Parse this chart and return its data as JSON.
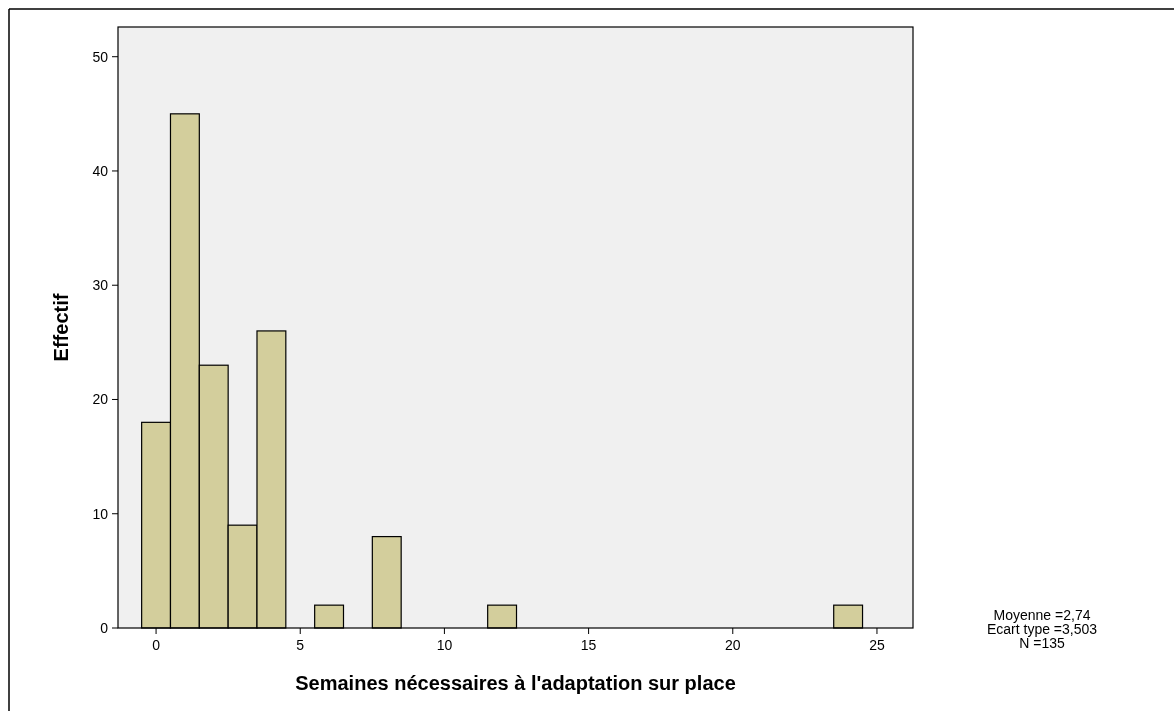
{
  "chart_data": {
    "type": "histogram",
    "xlabel": "Semaines nécessaires à l'adaptation sur place",
    "ylabel": "Effectif",
    "bins": [
      -0.5,
      0.5,
      1.5,
      2.5,
      3.5,
      4.5,
      5.5,
      6.5,
      7.5,
      8.5,
      9.5,
      10.5,
      11.5,
      12.5,
      13.5,
      14.5,
      15.5,
      16.5,
      17.5,
      18.5,
      19.5,
      20.5,
      21.5,
      22.5,
      23.5,
      24.5
    ],
    "values": [
      18,
      45,
      23,
      9,
      26,
      0,
      2,
      0,
      8,
      0,
      0,
      0,
      2,
      0,
      0,
      0,
      0,
      0,
      0,
      0,
      0,
      0,
      0,
      0,
      2
    ],
    "color": "#d3ce9c",
    "xlim": [
      -1.32,
      26.25
    ],
    "xticks": [
      0,
      5,
      10,
      15,
      20,
      25
    ],
    "ylim": [
      0,
      52.6
    ],
    "yticks": [
      0,
      10,
      20,
      30,
      40,
      50
    ],
    "grid": false,
    "annotations": [
      "Moyenne =2,74",
      "Ecart type =3,503",
      "N =135"
    ]
  }
}
